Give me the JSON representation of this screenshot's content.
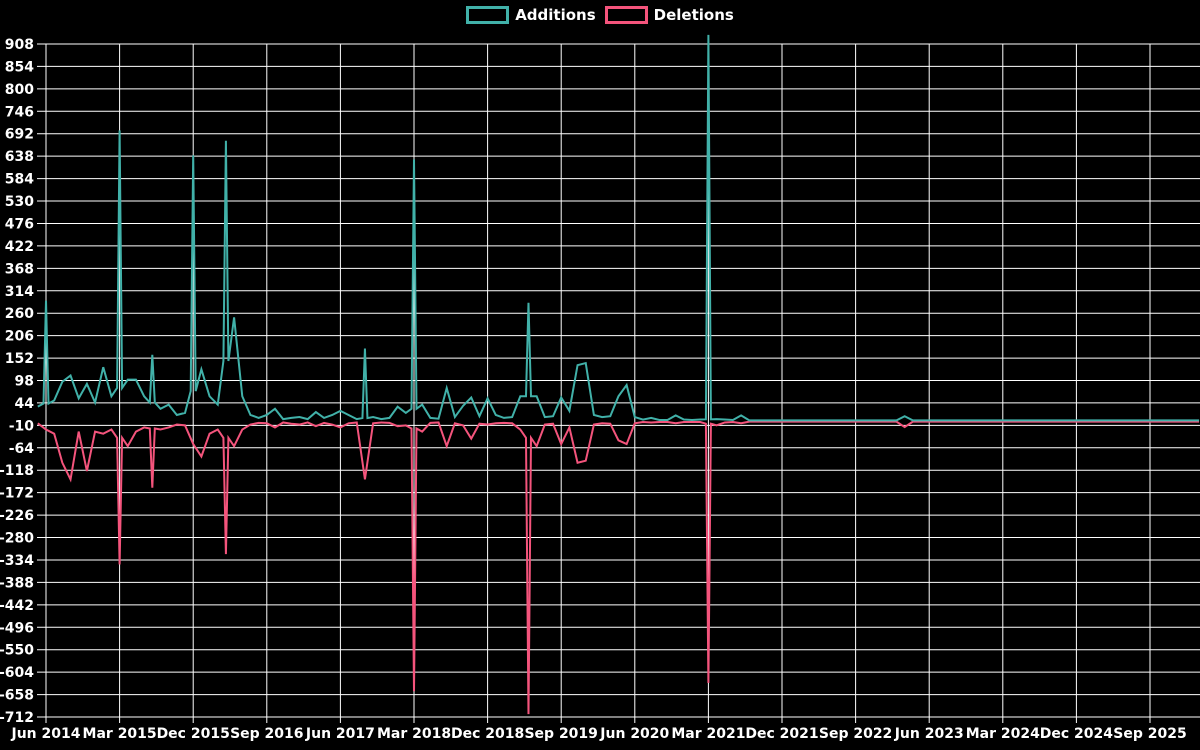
{
  "colors": {
    "background": "#000000",
    "grid": "#ffffff",
    "text": "#ffffff",
    "additions": "#41b1a9",
    "deletions": "#f4547c"
  },
  "legend": {
    "position": "top-center"
  },
  "chart_data": {
    "type": "line",
    "title": "",
    "xlabel": "",
    "ylabel": "",
    "grid": true,
    "x_unit": "month",
    "x_tick_labels": [
      "Jun 2014",
      "Mar 2015",
      "Dec 2015",
      "Sep 2016",
      "Jun 2017",
      "Mar 2018",
      "Dec 2018",
      "Sep 2019",
      "Jun 2020",
      "Mar 2021",
      "Dec 2021",
      "Sep 2022",
      "Jun 2023",
      "Mar 2024",
      "Dec 2024",
      "Sep 2025"
    ],
    "x_tick_indices": [
      1,
      10,
      19,
      28,
      37,
      46,
      55,
      64,
      73,
      82,
      91,
      100,
      109,
      118,
      127,
      136
    ],
    "y_tick_values": [
      908,
      854,
      800,
      746,
      692,
      638,
      584,
      530,
      476,
      422,
      368,
      314,
      260,
      206,
      152,
      98,
      44,
      -10,
      -64,
      -118,
      -172,
      -226,
      -280,
      -334,
      -388,
      -442,
      -496,
      -550,
      -604,
      -658,
      -712
    ],
    "y_axis_range": [
      -712,
      908
    ],
    "series": [
      {
        "name": "Additions",
        "color": "#41b1a9",
        "values": [
          35,
          290,
          50,
          95,
          110,
          55,
          90,
          45,
          130,
          60,
          700,
          100,
          100,
          60,
          160,
          30,
          40,
          15,
          20,
          640,
          125,
          60,
          40,
          675,
          250,
          60,
          15,
          8,
          15,
          30,
          5,
          8,
          10,
          5,
          22,
          8,
          15,
          25,
          15,
          5,
          175,
          10,
          5,
          8,
          35,
          20,
          630,
          40,
          8,
          6,
          80,
          10,
          37,
          57,
          12,
          55,
          15,
          8,
          10,
          60,
          285,
          60,
          10,
          12,
          57,
          25,
          135,
          140,
          15,
          10,
          12,
          60,
          87,
          10,
          4,
          8,
          3,
          3,
          14,
          4,
          3,
          4,
          930,
          5,
          4,
          3,
          14,
          2,
          2,
          2,
          2,
          2,
          2,
          2,
          2,
          2,
          2,
          2,
          2,
          2,
          2,
          2,
          2,
          2,
          2,
          2,
          12,
          2,
          2,
          2,
          2,
          2,
          2,
          2,
          2,
          2,
          2,
          2,
          2,
          2,
          2,
          2,
          2,
          2,
          2,
          2,
          2,
          2,
          2,
          2,
          2,
          2,
          2,
          2,
          2,
          2,
          2,
          2,
          2,
          2,
          2,
          2,
          2
        ]
      },
      {
        "name": "Deletions",
        "color": "#f4547c",
        "values": [
          -5,
          -20,
          -30,
          -100,
          -140,
          -25,
          -120,
          -25,
          -30,
          -20,
          -345,
          -60,
          -25,
          -15,
          -160,
          -20,
          -15,
          -8,
          -10,
          -55,
          -85,
          -30,
          -20,
          -320,
          -60,
          -20,
          -8,
          -4,
          -5,
          -15,
          -3,
          -6,
          -8,
          -3,
          -12,
          -4,
          -8,
          -15,
          -5,
          -3,
          -140,
          -5,
          -3,
          -4,
          -12,
          -10,
          -650,
          -25,
          -4,
          -3,
          -60,
          -5,
          -10,
          -42,
          -6,
          -8,
          -5,
          -4,
          -5,
          -20,
          -705,
          -60,
          -8,
          -6,
          -55,
          -15,
          -100,
          -95,
          -8,
          -5,
          -6,
          -46,
          -55,
          -5,
          -2,
          -3,
          -2,
          -2,
          -5,
          -2,
          -2,
          -2,
          -630,
          -10,
          -3,
          -2,
          -5,
          -1,
          -1,
          -1,
          -1,
          -1,
          -1,
          -1,
          -1,
          -1,
          -1,
          -1,
          -1,
          -1,
          -1,
          -1,
          -1,
          -1,
          -1,
          -1,
          -14,
          -1,
          -1,
          -1,
          -1,
          -1,
          -1,
          -1,
          -1,
          -1,
          -1,
          -1,
          -1,
          -1,
          -1,
          -1,
          -1,
          -1,
          -1,
          -1,
          -1,
          -1,
          -1,
          -1,
          -1,
          -1,
          -1,
          -1,
          -1,
          -1,
          -1,
          -1,
          -1,
          -1,
          -1,
          -1,
          -1
        ]
      }
    ]
  }
}
